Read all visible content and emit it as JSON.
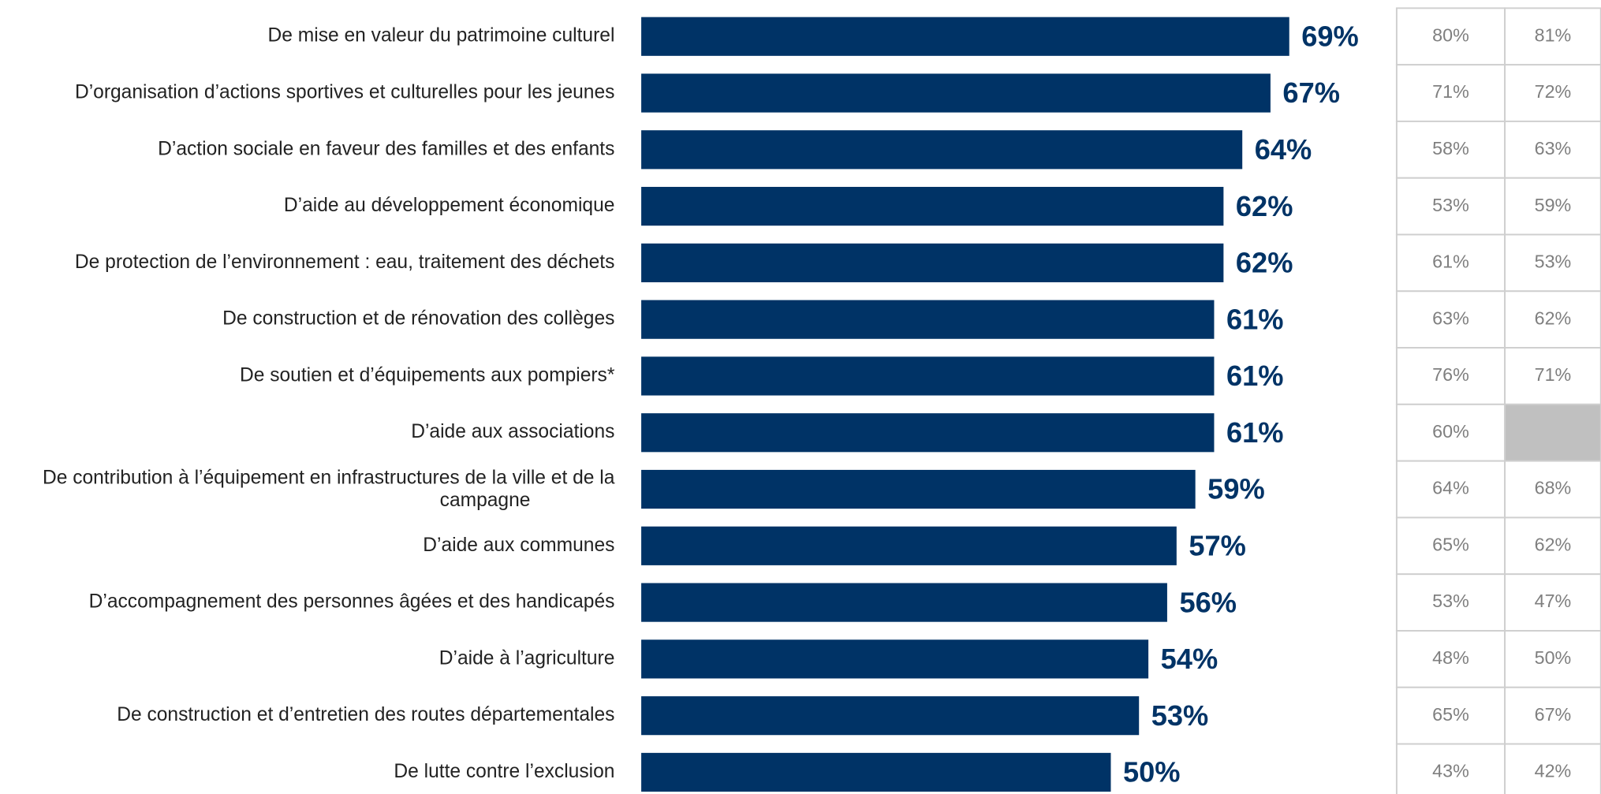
{
  "chart_data": {
    "type": "bar",
    "orientation": "horizontal",
    "categories": [
      "De mise en valeur du patrimoine culturel",
      "D’organisation d’actions sportives et culturelles pour les jeunes",
      "D’action sociale en faveur des familles et des enfants",
      "D’aide au développement économique",
      "De protection de l’environnement : eau, traitement des déchets",
      "De construction et de rénovation des collèges",
      "De soutien et d’équipements aux pompiers*",
      "D’aide aux associations",
      "De contribution à l’équipement en infrastructures de la ville et de la\ncampagne",
      "D’aide aux communes",
      "D’accompagnement des personnes âgées et des handicapés",
      "D’aide à l’agriculture",
      "De construction et d’entretien des routes départementales",
      "De lutte contre l’exclusion"
    ],
    "values": [
      69,
      67,
      64,
      62,
      62,
      61,
      61,
      61,
      59,
      57,
      56,
      54,
      53,
      50
    ],
    "value_labels": [
      "69%",
      "67%",
      "64%",
      "62%",
      "62%",
      "61%",
      "61%",
      "61%",
      "59%",
      "57%",
      "56%",
      "54%",
      "53%",
      "50%"
    ],
    "color": "#003366",
    "xlim": [
      0,
      100
    ]
  },
  "table": {
    "rows": [
      [
        "80%",
        "81%"
      ],
      [
        "71%",
        "72%"
      ],
      [
        "58%",
        "63%"
      ],
      [
        "53%",
        "59%"
      ],
      [
        "61%",
        "53%"
      ],
      [
        "63%",
        "62%"
      ],
      [
        "76%",
        "71%"
      ],
      [
        "60%",
        null
      ],
      [
        "64%",
        "68%"
      ],
      [
        "65%",
        "62%"
      ],
      [
        "53%",
        "47%"
      ],
      [
        "48%",
        "50%"
      ],
      [
        "65%",
        "67%"
      ],
      [
        "43%",
        "42%"
      ]
    ]
  }
}
